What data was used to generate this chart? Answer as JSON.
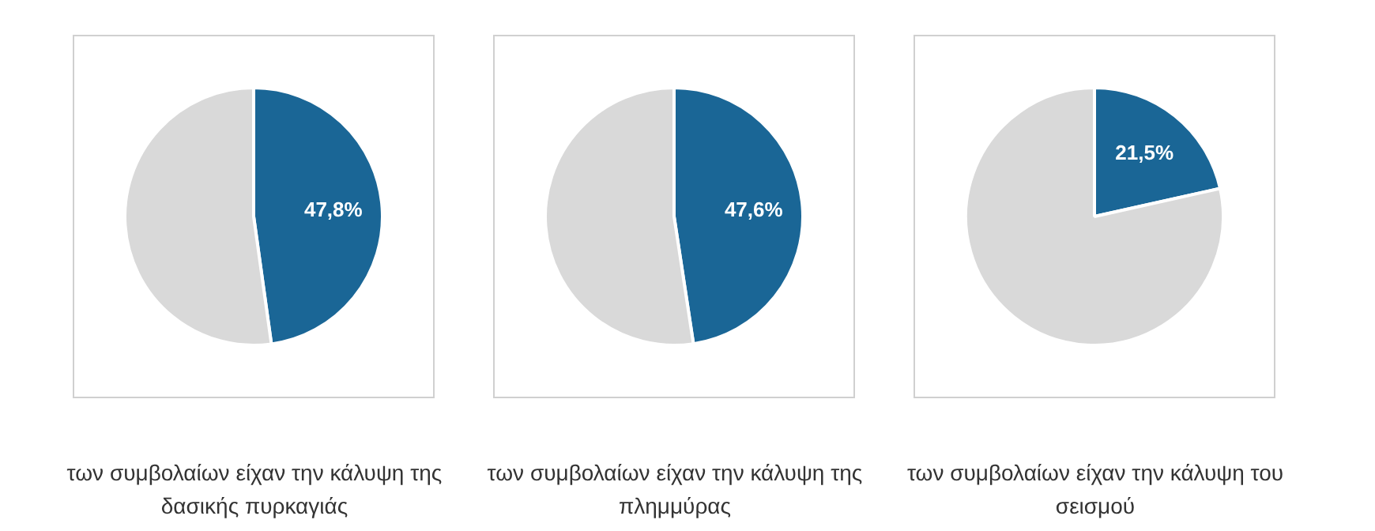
{
  "chart_data": [
    {
      "type": "pie",
      "categories": [
        null,
        null
      ],
      "values": [
        47.8,
        52.2
      ],
      "colors": [
        "#1a6696",
        "#d9d9d9"
      ],
      "value_labels": [
        "47,8%",
        null
      ],
      "annotations": [
        "των συμβολαίων είχαν την κάλυψη της δασικής πυρκαγιάς"
      ]
    },
    {
      "type": "pie",
      "categories": [
        null,
        null
      ],
      "values": [
        47.6,
        52.4
      ],
      "colors": [
        "#1a6696",
        "#d9d9d9"
      ],
      "value_labels": [
        "47,6%",
        null
      ],
      "annotations": [
        "των συμβολαίων είχαν την κάλυψη της πλημμύρας"
      ]
    },
    {
      "type": "pie",
      "categories": [
        null,
        null
      ],
      "values": [
        21.5,
        78.5
      ],
      "colors": [
        "#1a6696",
        "#d9d9d9"
      ],
      "value_labels": [
        "21,5%",
        null
      ],
      "annotations": [
        "των συμβολαίων είχαν την κάλυψη του σεισμού"
      ]
    }
  ]
}
